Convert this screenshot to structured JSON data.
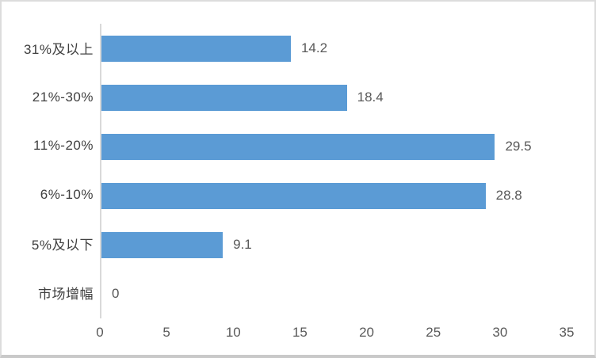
{
  "chart_data": {
    "type": "bar",
    "orientation": "horizontal",
    "title": "",
    "xlabel": "",
    "ylabel": "",
    "categories": [
      "31%及以上",
      "21%-30%",
      "11%-20%",
      "6%-10%",
      "5%及以下",
      "市场增幅"
    ],
    "values": [
      14.2,
      18.4,
      29.5,
      28.8,
      9.1,
      0
    ],
    "value_labels": [
      "14.2",
      "18.4",
      "29.5",
      "28.8",
      "9.1",
      "0"
    ],
    "x_ticks": [
      0,
      5,
      10,
      15,
      20,
      25,
      30,
      35
    ],
    "xlim": [
      0,
      35
    ],
    "grid": false,
    "legend_position": "none",
    "bar_color": "#5b9bd5",
    "axis_line_color": "#d9d9d9",
    "category_label_color": "#404040",
    "value_label_color": "#595959",
    "tick_label_color": "#595959"
  }
}
